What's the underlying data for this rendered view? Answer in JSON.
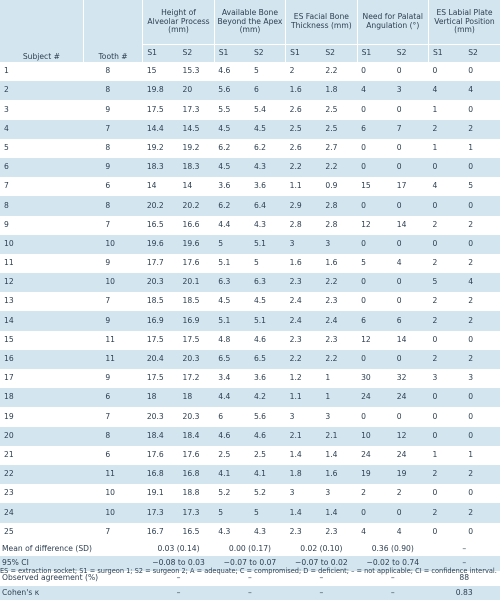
{
  "headers": {
    "subject": "Subject #",
    "tooth": "Tooth #",
    "groups": [
      "Height of Alveolar Process (mm)",
      "Available Bone Beyond the Apex (mm)",
      "ES Facial Bone Thickness (mm)",
      "Need for Palatal Angulation (°)",
      "ES Labial Plate Vertical Position (mm)"
    ],
    "s1": "S1",
    "s2": "S2"
  },
  "rows": [
    {
      "subject": "1",
      "tooth": "8",
      "values": [
        "15",
        "15.3",
        "4.6",
        "5",
        "2",
        "2.2",
        "0",
        "0",
        "0",
        "0"
      ]
    },
    {
      "subject": "2",
      "tooth": "8",
      "values": [
        "19.8",
        "20",
        "5.6",
        "6",
        "1.6",
        "1.8",
        "4",
        "3",
        "4",
        "4"
      ]
    },
    {
      "subject": "3",
      "tooth": "9",
      "values": [
        "17.5",
        "17.3",
        "5.5",
        "5.4",
        "2.6",
        "2.5",
        "0",
        "0",
        "1",
        "0"
      ]
    },
    {
      "subject": "4",
      "tooth": "7",
      "values": [
        "14.4",
        "14.5",
        "4.5",
        "4.5",
        "2.5",
        "2.5",
        "6",
        "7",
        "2",
        "2"
      ]
    },
    {
      "subject": "5",
      "tooth": "8",
      "values": [
        "19.2",
        "19.2",
        "6.2",
        "6.2",
        "2.6",
        "2.7",
        "0",
        "0",
        "1",
        "1"
      ]
    },
    {
      "subject": "6",
      "tooth": "9",
      "values": [
        "18.3",
        "18.3",
        "4.5",
        "4.3",
        "2.2",
        "2.2",
        "0",
        "0",
        "0",
        "0"
      ]
    },
    {
      "subject": "7",
      "tooth": "6",
      "values": [
        "14",
        "14",
        "3.6",
        "3.6",
        "1.1",
        "0.9",
        "15",
        "17",
        "4",
        "5"
      ]
    },
    {
      "subject": "8",
      "tooth": "8",
      "values": [
        "20.2",
        "20.2",
        "6.2",
        "6.4",
        "2.9",
        "2.8",
        "0",
        "0",
        "0",
        "0"
      ]
    },
    {
      "subject": "9",
      "tooth": "7",
      "values": [
        "16.5",
        "16.6",
        "4.4",
        "4.3",
        "2.8",
        "2.8",
        "12",
        "14",
        "2",
        "2"
      ]
    },
    {
      "subject": "10",
      "tooth": "10",
      "values": [
        "19.6",
        "19.6",
        "5",
        "5.1",
        "3",
        "3",
        "0",
        "0",
        "0",
        "0"
      ]
    },
    {
      "subject": "11",
      "tooth": "9",
      "values": [
        "17.7",
        "17.6",
        "5.1",
        "5",
        "1.6",
        "1.6",
        "5",
        "4",
        "2",
        "2"
      ]
    },
    {
      "subject": "12",
      "tooth": "10",
      "values": [
        "20.3",
        "20.1",
        "6.3",
        "6.3",
        "2.3",
        "2.2",
        "0",
        "0",
        "5",
        "4"
      ]
    },
    {
      "subject": "13",
      "tooth": "7",
      "values": [
        "18.5",
        "18.5",
        "4.5",
        "4.5",
        "2.4",
        "2.3",
        "0",
        "0",
        "2",
        "2"
      ]
    },
    {
      "subject": "14",
      "tooth": "9",
      "values": [
        "16.9",
        "16.9",
        "5.1",
        "5.1",
        "2.4",
        "2.4",
        "6",
        "6",
        "2",
        "2"
      ]
    },
    {
      "subject": "15",
      "tooth": "11",
      "values": [
        "17.5",
        "17.5",
        "4.8",
        "4.6",
        "2.3",
        "2.3",
        "12",
        "14",
        "0",
        "0"
      ]
    },
    {
      "subject": "16",
      "tooth": "11",
      "values": [
        "20.4",
        "20.3",
        "6.5",
        "6.5",
        "2.2",
        "2.2",
        "0",
        "0",
        "2",
        "2"
      ]
    },
    {
      "subject": "17",
      "tooth": "9",
      "values": [
        "17.5",
        "17.2",
        "3.4",
        "3.6",
        "1.2",
        "1",
        "30",
        "32",
        "3",
        "3"
      ]
    },
    {
      "subject": "18",
      "tooth": "6",
      "values": [
        "18",
        "18",
        "4.4",
        "4.2",
        "1.1",
        "1",
        "24",
        "24",
        "0",
        "0"
      ]
    },
    {
      "subject": "19",
      "tooth": "7",
      "values": [
        "20.3",
        "20.3",
        "6",
        "5.6",
        "3",
        "3",
        "0",
        "0",
        "0",
        "0"
      ]
    },
    {
      "subject": "20",
      "tooth": "8",
      "values": [
        "18.4",
        "18.4",
        "4.6",
        "4.6",
        "2.1",
        "2.1",
        "10",
        "12",
        "0",
        "0"
      ]
    },
    {
      "subject": "21",
      "tooth": "6",
      "values": [
        "17.6",
        "17.6",
        "2.5",
        "2.5",
        "1.4",
        "1.4",
        "24",
        "24",
        "1",
        "1"
      ]
    },
    {
      "subject": "22",
      "tooth": "11",
      "values": [
        "16.8",
        "16.8",
        "4.1",
        "4.1",
        "1.8",
        "1.6",
        "19",
        "19",
        "2",
        "2"
      ]
    },
    {
      "subject": "23",
      "tooth": "10",
      "values": [
        "19.1",
        "18.8",
        "5.2",
        "5.2",
        "3",
        "3",
        "2",
        "2",
        "0",
        "0"
      ]
    },
    {
      "subject": "24",
      "tooth": "10",
      "values": [
        "17.3",
        "17.3",
        "5",
        "5",
        "1.4",
        "1.4",
        "0",
        "0",
        "2",
        "2"
      ]
    },
    {
      "subject": "25",
      "tooth": "7",
      "values": [
        "16.7",
        "16.5",
        "4.3",
        "4.3",
        "2.3",
        "2.3",
        "4",
        "4",
        "0",
        "0"
      ]
    }
  ],
  "stats": [
    {
      "label": "Mean of difference (SD)",
      "values": [
        "0.03 (0.14)",
        "0.00 (0.17)",
        "0.02 (0.10)",
        "0.36 (0.90)",
        "–"
      ]
    },
    {
      "label": "95% CI",
      "values": [
        "−0.08 to 0.03",
        "−0.07 to 0.07",
        "−0.07 to 0.02",
        "−0.02 to 0.74",
        "–"
      ]
    },
    {
      "label": "Observed agreement (%)",
      "values": [
        "–",
        "–",
        "–",
        "–",
        "88"
      ]
    },
    {
      "label": "Cohen's κ",
      "values": [
        "–",
        "–",
        "–",
        "–",
        "0.83"
      ]
    }
  ],
  "footnote": "ES = extraction socket; S1 = surgeon 1; S2 = surgeon 2; A = adequate; C = compromised; D = deficient; – = not applicable; CI = confidence interval."
}
